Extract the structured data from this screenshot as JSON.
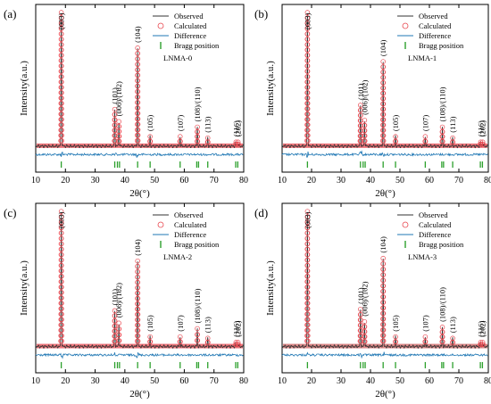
{
  "figure": {
    "background": "#ffffff"
  },
  "colors": {
    "observed": "#333333",
    "calculated": "#e8474f",
    "difference": "#1f77b4",
    "bragg": "#2ca02c",
    "noise_band_3": "#d06060"
  },
  "shared_axes": {
    "xlabel": "2θ(°)",
    "ylabel": "Intensity(a.u.)",
    "xlim": [
      10,
      80
    ],
    "xticks": [
      10,
      20,
      30,
      40,
      50,
      60,
      70,
      80
    ]
  },
  "legend": {
    "observed": "Observed",
    "calculated": "Calculated",
    "difference": "Difference",
    "bragg": "Bragg position"
  },
  "chart_data": [
    {
      "type": "line",
      "panel": "(a)",
      "sample": "LNMA-0",
      "xlim": [
        10,
        80
      ],
      "peaks": [
        {
          "x": 18.6,
          "h": 0.98,
          "hkl": "(003)"
        },
        {
          "x": 36.6,
          "h": 0.27,
          "hkl": "(101)"
        },
        {
          "x": 38.0,
          "h": 0.18,
          "hkl": "(006)/(102)"
        },
        {
          "x": 44.3,
          "h": 0.72,
          "hkl": "(104)"
        },
        {
          "x": 48.5,
          "h": 0.07,
          "hkl": "(105)"
        },
        {
          "x": 58.6,
          "h": 0.07,
          "hkl": "(107)"
        },
        {
          "x": 64.4,
          "h": 0.14,
          "hkl": "(108)/(110)"
        },
        {
          "x": 67.9,
          "h": 0.06,
          "hkl": "(113)"
        },
        {
          "x": 77.4,
          "h": 0.03,
          "hkl": "(116)"
        },
        {
          "x": 78.1,
          "h": 0.03,
          "hkl": "(202)"
        }
      ],
      "bragg_positions": [
        18.6,
        36.6,
        37.5,
        38.2,
        44.3,
        48.5,
        58.6,
        64.2,
        64.8,
        67.9,
        77.3,
        78.0
      ]
    },
    {
      "type": "line",
      "panel": "(b)",
      "sample": "LNMA-1",
      "xlim": [
        10,
        80
      ],
      "peaks": [
        {
          "x": 18.6,
          "h": 0.98,
          "hkl": "(003)"
        },
        {
          "x": 36.6,
          "h": 0.3,
          "hkl": "(101)"
        },
        {
          "x": 38.0,
          "h": 0.19,
          "hkl": "(006)/(102)"
        },
        {
          "x": 44.3,
          "h": 0.62,
          "hkl": "(104)"
        },
        {
          "x": 48.5,
          "h": 0.07,
          "hkl": "(105)"
        },
        {
          "x": 58.6,
          "h": 0.07,
          "hkl": "(107)"
        },
        {
          "x": 64.4,
          "h": 0.14,
          "hkl": "(108)/(110)"
        },
        {
          "x": 67.9,
          "h": 0.06,
          "hkl": "(113)"
        },
        {
          "x": 77.4,
          "h": 0.03,
          "hkl": "(116)"
        },
        {
          "x": 78.1,
          "h": 0.03,
          "hkl": "(202)"
        }
      ],
      "bragg_positions": [
        18.6,
        36.6,
        37.5,
        38.2,
        44.3,
        48.5,
        58.6,
        64.2,
        64.8,
        67.9,
        77.3,
        78.0
      ]
    },
    {
      "type": "line",
      "panel": "(c)",
      "sample": "LNMA-2",
      "xlim": [
        10,
        80
      ],
      "peaks": [
        {
          "x": 18.6,
          "h": 0.98,
          "hkl": "(003)"
        },
        {
          "x": 36.6,
          "h": 0.26,
          "hkl": "(101)"
        },
        {
          "x": 38.0,
          "h": 0.17,
          "hkl": "(006)/(102)"
        },
        {
          "x": 44.3,
          "h": 0.62,
          "hkl": "(104)"
        },
        {
          "x": 48.5,
          "h": 0.07,
          "hkl": "(105)"
        },
        {
          "x": 58.6,
          "h": 0.07,
          "hkl": "(107)"
        },
        {
          "x": 64.4,
          "h": 0.13,
          "hkl": "(108)/(110)"
        },
        {
          "x": 67.9,
          "h": 0.06,
          "hkl": "(113)"
        },
        {
          "x": 77.4,
          "h": 0.03,
          "hkl": "(116)"
        },
        {
          "x": 78.1,
          "h": 0.03,
          "hkl": "(202)"
        }
      ],
      "bragg_positions": [
        18.6,
        36.6,
        37.5,
        38.2,
        44.3,
        48.5,
        58.6,
        64.2,
        64.8,
        67.9,
        77.3,
        78.0
      ]
    },
    {
      "type": "line",
      "panel": "(d)",
      "sample": "LNMA-3",
      "xlim": [
        10,
        80
      ],
      "peaks": [
        {
          "x": 18.6,
          "h": 0.98,
          "hkl": "(003)"
        },
        {
          "x": 36.6,
          "h": 0.27,
          "hkl": "(101)"
        },
        {
          "x": 38.0,
          "h": 0.18,
          "hkl": "(006)/(102)"
        },
        {
          "x": 44.3,
          "h": 0.64,
          "hkl": "(104)"
        },
        {
          "x": 48.5,
          "h": 0.07,
          "hkl": "(105)"
        },
        {
          "x": 58.6,
          "h": 0.07,
          "hkl": "(107)"
        },
        {
          "x": 64.4,
          "h": 0.14,
          "hkl": "(108)/(110)"
        },
        {
          "x": 67.9,
          "h": 0.06,
          "hkl": "(113)"
        },
        {
          "x": 77.4,
          "h": 0.03,
          "hkl": "(116)"
        },
        {
          "x": 78.1,
          "h": 0.03,
          "hkl": "(202)"
        }
      ],
      "bragg_positions": [
        18.6,
        36.6,
        37.5,
        38.2,
        44.3,
        48.5,
        58.6,
        64.2,
        64.8,
        67.9,
        77.3,
        78.0
      ]
    }
  ]
}
